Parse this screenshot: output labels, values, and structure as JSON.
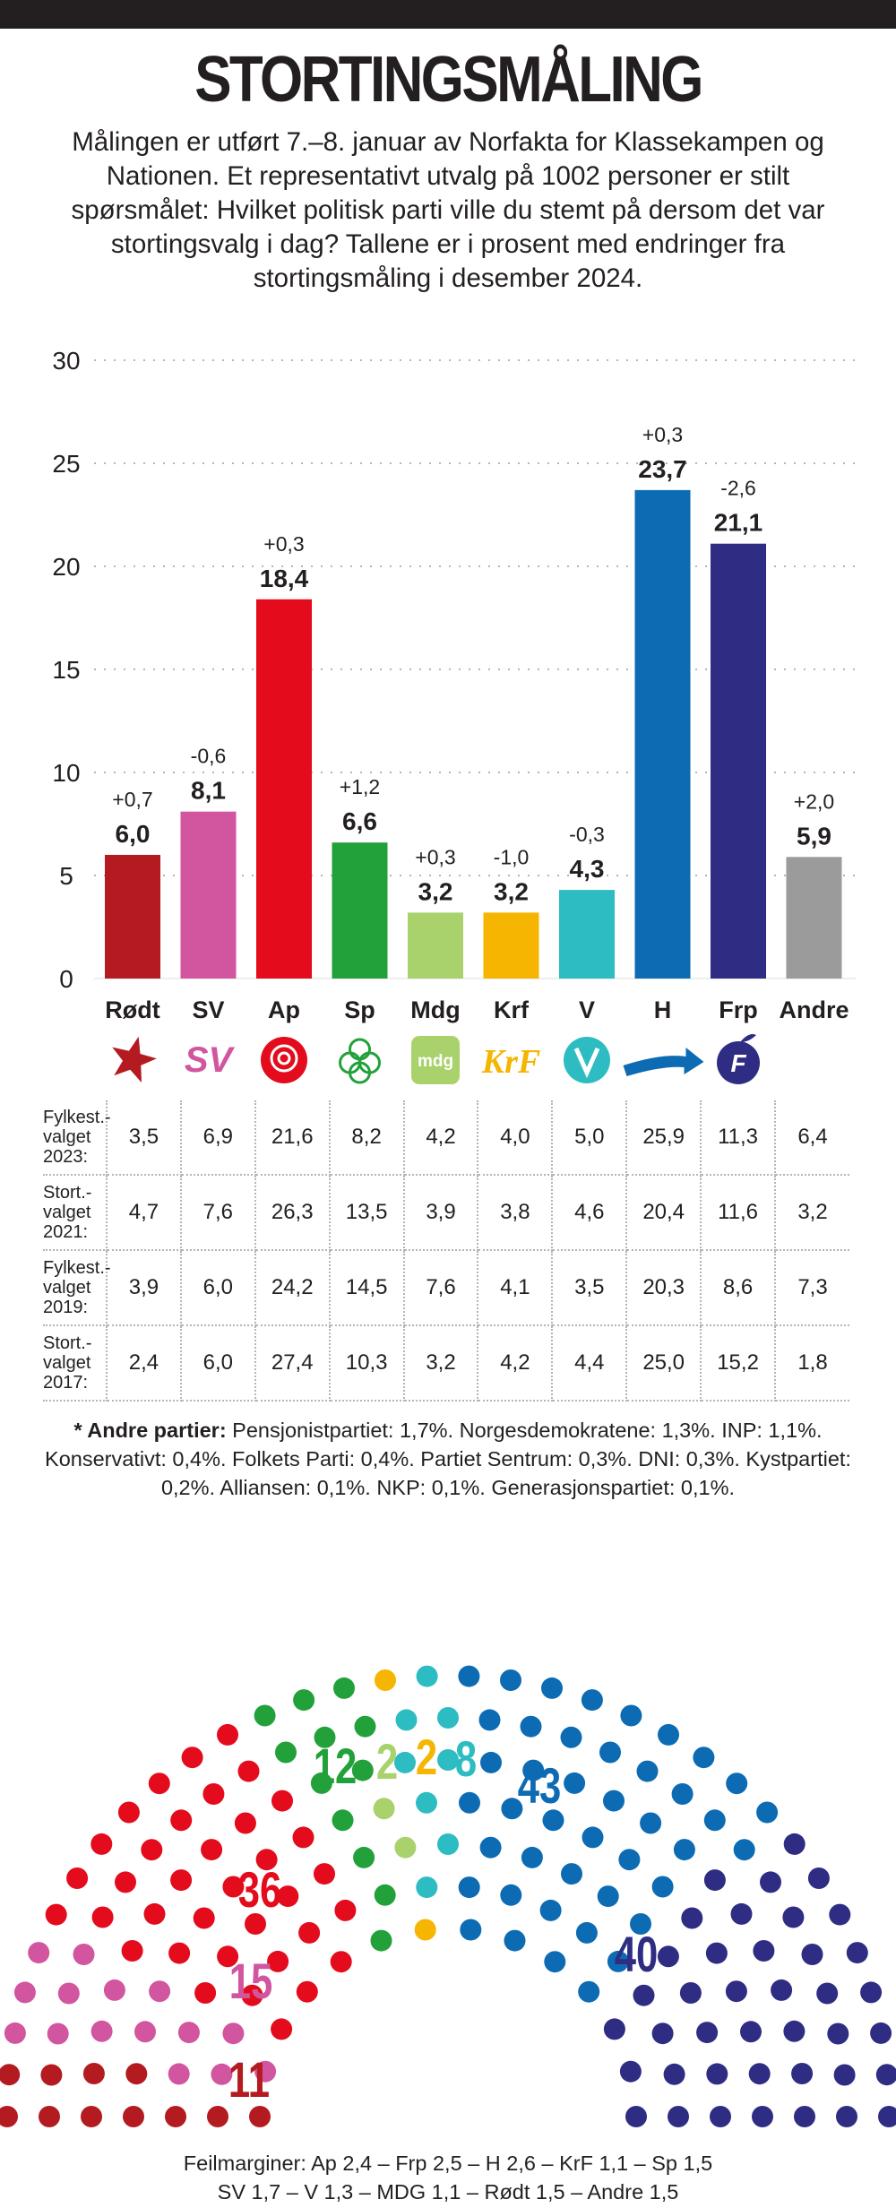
{
  "header": {
    "title": "STORTINGSMÅLING",
    "intro": "Målingen er utført 7.–8. januar av Norfakta for Klassekampen og Nationen. Et representativt utvalg på 1002 personer er stilt spørsmålet: Hvilket politisk parti ville du stemt på dersom det var stortingsvalg i dag? Tallene er i prosent med endringer fra stortingsmåling i desember 2024."
  },
  "chart_data": [
    {
      "type": "bar",
      "categories": [
        "Rødt",
        "SV",
        "Ap",
        "Sp",
        "Mdg",
        "Krf",
        "V",
        "H",
        "Frp",
        "Andre"
      ],
      "values": [
        6.0,
        8.1,
        18.4,
        6.6,
        3.2,
        3.2,
        4.3,
        23.7,
        21.1,
        5.9
      ],
      "value_labels": [
        "6,0",
        "8,1",
        "18,4",
        "6,6",
        "3,2",
        "3,2",
        "4,3",
        "23,7",
        "21,1",
        "5,9"
      ],
      "changes": [
        "+0,7",
        "-0,6",
        "+0,3",
        "+1,2",
        "+0,3",
        "-1,0",
        "-0,3",
        "+0,3",
        "-2,6",
        "+2,0"
      ],
      "colors": [
        "#b31b20",
        "#d1559f",
        "#e30b1c",
        "#22a13a",
        "#a9d26c",
        "#f6b500",
        "#2cbcc1",
        "#0c6bb3",
        "#2e2d83",
        "#9b9b9b"
      ],
      "logos": [
        "rodt-star-icon",
        "sv-logo-icon",
        "ap-rose-icon",
        "sp-clover-icon",
        "mdg-logo-icon",
        "krf-logo-icon",
        "venstre-logo-icon",
        "hoyre-arrow-icon",
        "frp-apple-icon",
        "none"
      ],
      "yticks": [
        "0",
        "5",
        "10",
        "15",
        "20",
        "25",
        "30"
      ],
      "ylim": [
        0,
        30
      ],
      "title": "",
      "xlabel": "",
      "ylabel": ""
    },
    {
      "type": "table",
      "rows": [
        {
          "label": [
            "Fylkest.-",
            "valget",
            "2023:"
          ],
          "values": [
            "3,5",
            "6,9",
            "21,6",
            "8,2",
            "4,2",
            "4,0",
            "5,0",
            "25,9",
            "11,3",
            "6,4"
          ]
        },
        {
          "label": [
            "Stort.-",
            "valget",
            "2021:"
          ],
          "values": [
            "4,7",
            "7,6",
            "26,3",
            "13,5",
            "3,9",
            "3,8",
            "4,6",
            "20,4",
            "11,6",
            "3,2"
          ]
        },
        {
          "label": [
            "Fylkest.-",
            "valget",
            "2019:"
          ],
          "values": [
            "3,9",
            "6,0",
            "24,2",
            "14,5",
            "7,6",
            "4,1",
            "3,5",
            "20,3",
            "8,6",
            "7,3"
          ]
        },
        {
          "label": [
            "Stort.-",
            "valget",
            "2017:"
          ],
          "values": [
            "2,4",
            "6,0",
            "27,4",
            "10,3",
            "3,2",
            "4,2",
            "4,4",
            "25,0",
            "15,2",
            "1,8"
          ]
        }
      ]
    },
    {
      "type": "seat-distribution",
      "parties": [
        {
          "name": "Rødt",
          "seats": 11,
          "label": "11",
          "color": "#b31b20"
        },
        {
          "name": "SV",
          "seats": 15,
          "label": "15",
          "color": "#d1559f"
        },
        {
          "name": "Ap",
          "seats": 36,
          "label": "36",
          "color": "#e30b1c"
        },
        {
          "name": "Sp",
          "seats": 12,
          "label": "12",
          "color": "#22a13a"
        },
        {
          "name": "Mdg",
          "seats": 2,
          "label": "2",
          "color": "#a9d26c"
        },
        {
          "name": "Krf",
          "seats": 2,
          "label": "2",
          "color": "#f6b500"
        },
        {
          "name": "V",
          "seats": 8,
          "label": "8",
          "color": "#2cbcc1"
        },
        {
          "name": "H",
          "seats": 43,
          "label": "43",
          "color": "#0c6bb3"
        },
        {
          "name": "Frp",
          "seats": 40,
          "label": "40",
          "color": "#2e2d83"
        }
      ]
    }
  ],
  "notes": {
    "lead": "* Andre partier:",
    "text": " Pensjonistpartiet: 1,7%. Norgesdemokratene: 1,3%. INP: 1,1%. Konservativt: 0,4%. Folkets Parti: 0,4%. Partiet Sentrum: 0,3%. DNI: 0,3%. Kystpartiet: 0,2%. Alliansen: 0,1%. NKP: 0,1%. Generasjonspartiet: 0,1%."
  },
  "footer": {
    "line1": "Feilmarginer: Ap 2,4 – Frp 2,5 – H 2,6 – KrF 1,1 – Sp 1,5",
    "line2": "SV 1,7 – V 1,3 – MDG 1,1 – Rødt 1,5 – Andre 1,5"
  }
}
